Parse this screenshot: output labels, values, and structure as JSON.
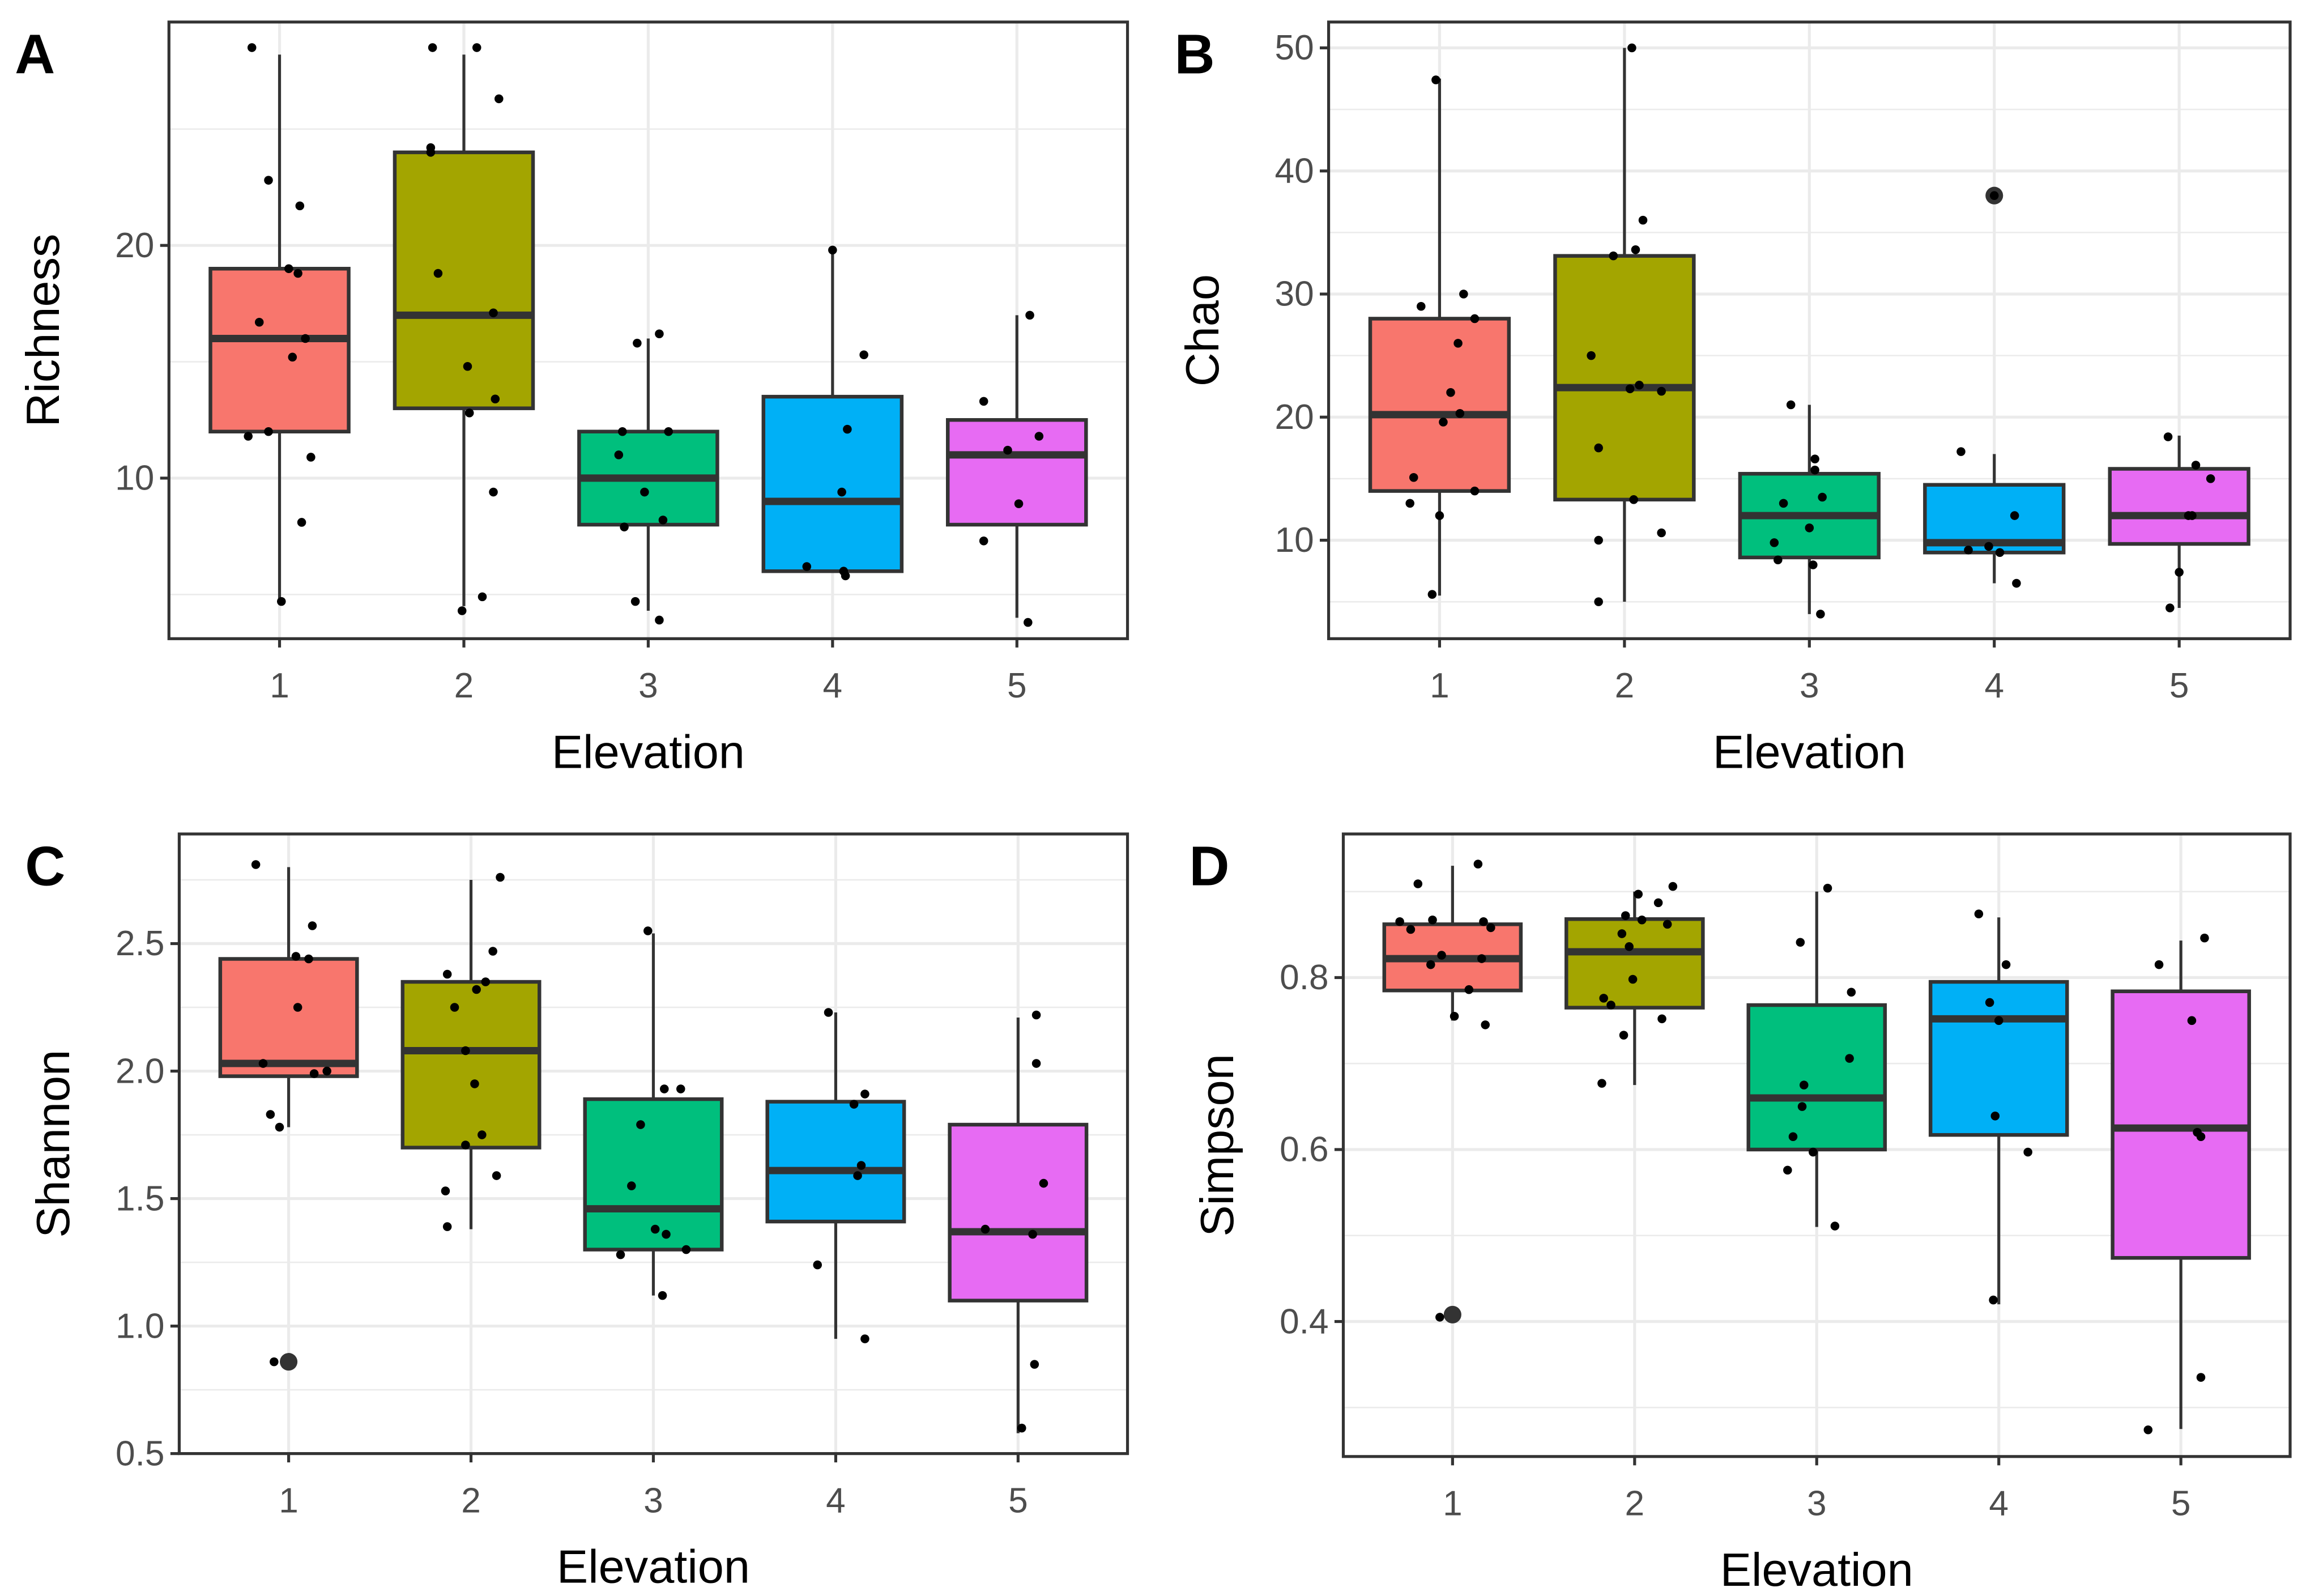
{
  "colors": {
    "groups": [
      "#F8766D",
      "#A3A500",
      "#00BF7D",
      "#00B0F6",
      "#E76BF3"
    ],
    "line": "#333333",
    "grid": "#ebebeb",
    "text": "#4d4d4d"
  },
  "chart_data": [
    {
      "type": "box",
      "panel": "A",
      "xlabel": "Elevation",
      "ylabel": "Richness",
      "categories": [
        "1",
        "2",
        "3",
        "4",
        "5"
      ],
      "ylim": [
        3.1,
        29.6
      ],
      "yticks": [
        10,
        20
      ],
      "yminor": [
        5,
        15,
        25
      ],
      "boxes": [
        {
          "q1": 12,
          "median": 16,
          "q3": 19,
          "lo": 4.8,
          "hi": 28.2,
          "outliers": []
        },
        {
          "q1": 13,
          "median": 17,
          "q3": 24,
          "lo": 4.5,
          "hi": 28.2,
          "outliers": []
        },
        {
          "q1": 8,
          "median": 10,
          "q3": 12,
          "lo": 4.3,
          "hi": 16,
          "outliers": []
        },
        {
          "q1": 6,
          "median": 9,
          "q3": 13.5,
          "lo": 6,
          "hi": 19.7,
          "outliers": []
        },
        {
          "q1": 8,
          "median": 11,
          "q3": 12.5,
          "lo": 4,
          "hi": 17,
          "outliers": []
        }
      ],
      "points": [
        [
          0.85,
          28.5
        ],
        [
          0.94,
          22.8
        ],
        [
          1.11,
          21.7
        ],
        [
          1.05,
          19
        ],
        [
          1.1,
          18.8
        ],
        [
          0.89,
          16.7
        ],
        [
          1.14,
          16
        ],
        [
          1.07,
          15.2
        ],
        [
          0.83,
          11.8
        ],
        [
          0.94,
          12
        ],
        [
          1.17,
          10.9
        ],
        [
          1.12,
          8.1
        ],
        [
          1.01,
          4.7
        ],
        [
          1.83,
          28.5
        ],
        [
          2.07,
          28.5
        ],
        [
          2.19,
          26.3
        ],
        [
          1.82,
          24.2
        ],
        [
          1.82,
          24
        ],
        [
          1.86,
          18.8
        ],
        [
          2.16,
          17.1
        ],
        [
          2.02,
          14.8
        ],
        [
          2.17,
          13.4
        ],
        [
          2.03,
          12.8
        ],
        [
          2.16,
          9.4
        ],
        [
          2.1,
          4.9
        ],
        [
          1.99,
          4.3
        ],
        [
          2.86,
          12
        ],
        [
          3.11,
          12
        ],
        [
          2.84,
          11
        ],
        [
          2.98,
          9.4
        ],
        [
          3.08,
          8.2
        ],
        [
          2.87,
          7.9
        ],
        [
          2.93,
          4.7
        ],
        [
          3.06,
          3.9
        ],
        [
          2.94,
          15.8
        ],
        [
          3.06,
          16.2
        ],
        [
          4.0,
          19.8
        ],
        [
          4.17,
          15.3
        ],
        [
          4.08,
          12.1
        ],
        [
          4.05,
          9.4
        ],
        [
          3.86,
          6.2
        ],
        [
          4.06,
          6
        ],
        [
          4.07,
          5.8
        ],
        [
          5.07,
          17
        ],
        [
          4.82,
          13.3
        ],
        [
          4.95,
          11.2
        ],
        [
          5.12,
          11.8
        ],
        [
          5.01,
          8.9
        ],
        [
          4.82,
          7.3
        ],
        [
          5.06,
          3.8
        ]
      ]
    },
    {
      "type": "box",
      "panel": "B",
      "xlabel": "Elevation",
      "ylabel": "Chao",
      "categories": [
        "1",
        "2",
        "3",
        "4",
        "5"
      ],
      "ylim": [
        2.0,
        52.1
      ],
      "yticks": [
        10,
        20,
        30,
        40,
        50
      ],
      "yminor": [
        5,
        15,
        25,
        35,
        45
      ],
      "boxes": [
        {
          "q1": 14,
          "median": 20.2,
          "q3": 28,
          "lo": 5.5,
          "hi": 47.5,
          "outliers": []
        },
        {
          "q1": 13.3,
          "median": 22.4,
          "q3": 33.1,
          "lo": 5,
          "hi": 50,
          "outliers": []
        },
        {
          "q1": 8.6,
          "median": 12,
          "q3": 15.4,
          "lo": 4,
          "hi": 21,
          "outliers": []
        },
        {
          "q1": 9,
          "median": 9.8,
          "q3": 14.5,
          "lo": 6.5,
          "hi": 17,
          "outliers": [
            38
          ]
        },
        {
          "q1": 9.7,
          "median": 12,
          "q3": 15.8,
          "lo": 4.5,
          "hi": 18.5,
          "outliers": []
        }
      ],
      "points": [
        [
          0.98,
          47.4
        ],
        [
          0.9,
          29
        ],
        [
          1.13,
          30
        ],
        [
          1.19,
          28
        ],
        [
          1.1,
          26
        ],
        [
          1.06,
          22
        ],
        [
          1.11,
          20.3
        ],
        [
          1.02,
          19.6
        ],
        [
          0.86,
          15.1
        ],
        [
          1.19,
          14
        ],
        [
          0.84,
          13
        ],
        [
          1.0,
          12
        ],
        [
          0.96,
          5.6
        ],
        [
          2.04,
          50
        ],
        [
          2.1,
          36
        ],
        [
          1.94,
          33.1
        ],
        [
          2.06,
          33.6
        ],
        [
          1.82,
          25
        ],
        [
          2.08,
          22.6
        ],
        [
          2.03,
          22.3
        ],
        [
          2.2,
          22.1
        ],
        [
          1.86,
          17.5
        ],
        [
          2.05,
          13.3
        ],
        [
          2.2,
          10.6
        ],
        [
          1.86,
          10
        ],
        [
          1.86,
          5
        ],
        [
          2.9,
          21
        ],
        [
          3.03,
          16.6
        ],
        [
          3.03,
          15.7
        ],
        [
          2.86,
          13
        ],
        [
          3.07,
          13.5
        ],
        [
          3.0,
          11
        ],
        [
          2.81,
          9.8
        ],
        [
          2.83,
          8.4
        ],
        [
          3.02,
          8
        ],
        [
          3.06,
          4
        ],
        [
          4.0,
          38
        ],
        [
          3.82,
          17.2
        ],
        [
          4.11,
          12
        ],
        [
          3.86,
          9.2
        ],
        [
          3.97,
          9.5
        ],
        [
          4.03,
          9
        ],
        [
          4.12,
          6.5
        ],
        [
          4.94,
          18.4
        ],
        [
          5.09,
          16.1
        ],
        [
          5.17,
          15
        ],
        [
          5.05,
          12
        ],
        [
          5.07,
          12
        ],
        [
          5.0,
          7.4
        ],
        [
          4.95,
          4.5
        ]
      ]
    },
    {
      "type": "box",
      "panel": "C",
      "xlabel": "Elevation",
      "ylabel": "Shannon",
      "categories": [
        "1",
        "2",
        "3",
        "4",
        "5"
      ],
      "ylim": [
        0.5,
        2.93
      ],
      "yticks": [
        0.5,
        1.0,
        1.5,
        2.0,
        2.5
      ],
      "yminor": [
        0.75,
        1.25,
        1.75,
        2.25,
        2.75
      ],
      "boxes": [
        {
          "q1": 1.98,
          "median": 2.03,
          "q3": 2.44,
          "lo": 1.78,
          "hi": 2.8,
          "outliers": [
            0.86
          ]
        },
        {
          "q1": 1.7,
          "median": 2.08,
          "q3": 2.35,
          "lo": 1.38,
          "hi": 2.75,
          "outliers": []
        },
        {
          "q1": 1.3,
          "median": 1.46,
          "q3": 1.89,
          "lo": 1.12,
          "hi": 2.54,
          "outliers": []
        },
        {
          "q1": 1.41,
          "median": 1.61,
          "q3": 1.88,
          "lo": 0.95,
          "hi": 2.23,
          "outliers": []
        },
        {
          "q1": 1.1,
          "median": 1.37,
          "q3": 1.79,
          "lo": 0.58,
          "hi": 2.21,
          "outliers": []
        }
      ],
      "points": [
        [
          0.82,
          2.81
        ],
        [
          1.13,
          2.57
        ],
        [
          1.04,
          2.45
        ],
        [
          1.11,
          2.44
        ],
        [
          1.05,
          2.25
        ],
        [
          0.86,
          2.03
        ],
        [
          1.21,
          2.0
        ],
        [
          1.14,
          1.99
        ],
        [
          0.9,
          1.83
        ],
        [
          0.95,
          1.78
        ],
        [
          0.92,
          0.86
        ],
        [
          2.16,
          2.76
        ],
        [
          2.12,
          2.47
        ],
        [
          1.87,
          2.38
        ],
        [
          2.08,
          2.35
        ],
        [
          2.03,
          2.32
        ],
        [
          1.91,
          2.25
        ],
        [
          1.97,
          2.08
        ],
        [
          2.02,
          1.95
        ],
        [
          2.06,
          1.75
        ],
        [
          1.97,
          1.71
        ],
        [
          2.14,
          1.59
        ],
        [
          1.86,
          1.53
        ],
        [
          1.87,
          1.39
        ],
        [
          2.97,
          2.55
        ],
        [
          3.06,
          1.93
        ],
        [
          3.15,
          1.93
        ],
        [
          2.93,
          1.79
        ],
        [
          2.88,
          1.55
        ],
        [
          3.01,
          1.38
        ],
        [
          3.07,
          1.36
        ],
        [
          2.82,
          1.28
        ],
        [
          3.18,
          1.3
        ],
        [
          3.05,
          1.12
        ],
        [
          3.96,
          2.23
        ],
        [
          4.16,
          1.91
        ],
        [
          4.1,
          1.87
        ],
        [
          4.14,
          1.63
        ],
        [
          4.12,
          1.59
        ],
        [
          3.9,
          1.24
        ],
        [
          4.16,
          0.95
        ],
        [
          5.1,
          2.22
        ],
        [
          5.1,
          2.03
        ],
        [
          5.14,
          1.56
        ],
        [
          4.82,
          1.38
        ],
        [
          5.08,
          1.36
        ],
        [
          5.09,
          0.85
        ],
        [
          5.02,
          0.6
        ]
      ]
    },
    {
      "type": "box",
      "panel": "D",
      "xlabel": "Elevation",
      "ylabel": "Simpson",
      "categories": [
        "1",
        "2",
        "3",
        "4",
        "5"
      ],
      "ylim": [
        0.243,
        0.967
      ],
      "yticks": [
        0.4,
        0.6,
        0.8
      ],
      "yminor": [
        0.3,
        0.5,
        0.7,
        0.9
      ],
      "boxes": [
        {
          "q1": 0.785,
          "median": 0.822,
          "q3": 0.862,
          "lo": 0.75,
          "hi": 0.93,
          "outliers": [
            0.408
          ]
        },
        {
          "q1": 0.765,
          "median": 0.83,
          "q3": 0.868,
          "lo": 0.675,
          "hi": 0.9,
          "outliers": []
        },
        {
          "q1": 0.6,
          "median": 0.66,
          "q3": 0.768,
          "lo": 0.51,
          "hi": 0.9,
          "outliers": []
        },
        {
          "q1": 0.617,
          "median": 0.752,
          "q3": 0.795,
          "lo": 0.42,
          "hi": 0.87,
          "outliers": []
        },
        {
          "q1": 0.474,
          "median": 0.625,
          "q3": 0.784,
          "lo": 0.275,
          "hi": 0.843,
          "outliers": []
        }
      ],
      "points": [
        [
          0.81,
          0.909
        ],
        [
          1.14,
          0.932
        ],
        [
          0.71,
          0.865
        ],
        [
          0.89,
          0.867
        ],
        [
          1.17,
          0.865
        ],
        [
          1.21,
          0.858
        ],
        [
          0.77,
          0.856
        ],
        [
          0.94,
          0.826
        ],
        [
          0.88,
          0.815
        ],
        [
          1.16,
          0.822
        ],
        [
          1.09,
          0.786
        ],
        [
          1.01,
          0.755
        ],
        [
          1.18,
          0.745
        ],
        [
          0.93,
          0.405
        ],
        [
          2.21,
          0.906
        ],
        [
          2.02,
          0.897
        ],
        [
          2.13,
          0.887
        ],
        [
          1.95,
          0.872
        ],
        [
          2.04,
          0.867
        ],
        [
          2.18,
          0.862
        ],
        [
          1.93,
          0.851
        ],
        [
          1.97,
          0.836
        ],
        [
          1.99,
          0.798
        ],
        [
          1.83,
          0.776
        ],
        [
          1.87,
          0.768
        ],
        [
          2.15,
          0.752
        ],
        [
          1.94,
          0.733
        ],
        [
          1.82,
          0.677
        ],
        [
          3.06,
          0.904
        ],
        [
          2.91,
          0.841
        ],
        [
          3.19,
          0.783
        ],
        [
          3.18,
          0.706
        ],
        [
          2.93,
          0.675
        ],
        [
          2.92,
          0.65
        ],
        [
          2.87,
          0.615
        ],
        [
          2.98,
          0.597
        ],
        [
          2.84,
          0.576
        ],
        [
          3.1,
          0.511
        ],
        [
          3.89,
          0.874
        ],
        [
          4.04,
          0.815
        ],
        [
          3.95,
          0.771
        ],
        [
          4.0,
          0.75
        ],
        [
          3.98,
          0.639
        ],
        [
          4.16,
          0.597
        ],
        [
          3.97,
          0.425
        ],
        [
          5.13,
          0.846
        ],
        [
          4.88,
          0.815
        ],
        [
          5.06,
          0.75
        ],
        [
          5.11,
          0.615
        ],
        [
          5.09,
          0.62
        ],
        [
          5.11,
          0.335
        ],
        [
          4.82,
          0.274
        ]
      ]
    }
  ]
}
